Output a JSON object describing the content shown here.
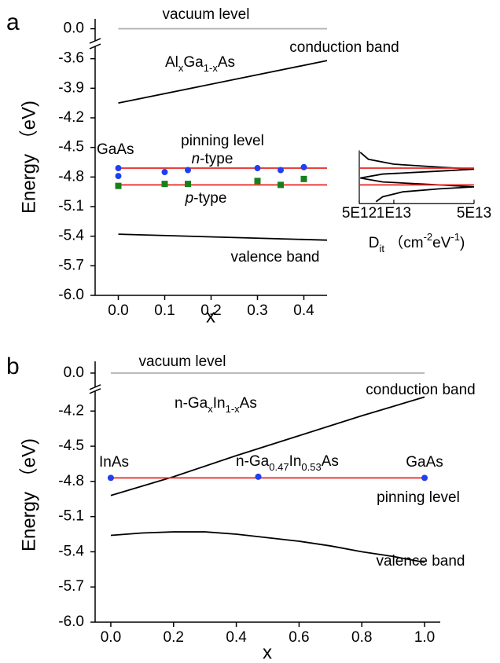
{
  "chart_data": [
    {
      "type": "line",
      "label": "a",
      "xlabel": "x",
      "ylabel": "Energy （eV)",
      "xlim": [
        -0.05,
        0.45
      ],
      "xticks": [
        {
          "value": 0,
          "label": "0.0"
        },
        0.1,
        0.2,
        0.3,
        0.4
      ],
      "ylim": [
        -6,
        0.1
      ],
      "ybreak": [
        -3.5,
        -0.1
      ],
      "yticks": [
        {
          "value": 0,
          "label": "0.0"
        },
        -3.6,
        -3.9,
        -4.2,
        -4.5,
        -4.8,
        -5.1,
        -5.4,
        -5.7,
        {
          "value": -6,
          "label": "-6.0"
        }
      ],
      "series": [
        {
          "name": "vacuum level",
          "mark": "line",
          "color": "#b4b4b4",
          "x": [
            0,
            0.45
          ],
          "values": [
            0,
            0
          ]
        },
        {
          "name": "conduction band",
          "mark": "line",
          "color": "#000000",
          "x": [
            0,
            0.45
          ],
          "values": [
            -4.05,
            -3.62
          ]
        },
        {
          "name": "valence band",
          "mark": "line",
          "color": "#000000",
          "x": [
            0,
            0.45
          ],
          "values": [
            -5.38,
            -5.44
          ]
        },
        {
          "mark": "line",
          "color": "#e8251f",
          "x": [
            0,
            0.45
          ],
          "values": [
            -4.71,
            -4.71
          ]
        },
        {
          "mark": "line",
          "color": "#e8251f",
          "x": [
            0,
            0.45
          ],
          "values": [
            -4.88,
            -4.88
          ]
        },
        {
          "mark": "circle",
          "color": "#1f3ff0",
          "x": [
            0,
            0,
            0.1,
            0.15,
            0.3,
            0.35,
            0.4
          ],
          "values": [
            -4.71,
            -4.79,
            -4.75,
            -4.73,
            -4.71,
            -4.73,
            -4.7
          ]
        },
        {
          "mark": "square",
          "color": "#17801a",
          "x": [
            0,
            0.1,
            0.15,
            0.3,
            0.35,
            0.4
          ],
          "values": [
            -4.89,
            -4.87,
            -4.87,
            -4.84,
            -4.88,
            -4.82
          ]
        }
      ],
      "annotations": {
        "material": [
          "Al",
          "x",
          "Ga",
          "1-x",
          "As"
        ],
        "reference": "GaAs",
        "pinning": "pinning level",
        "n_type": [
          "n",
          "-type"
        ],
        "p_type": [
          "p",
          "-type"
        ]
      },
      "inset": {
        "xlabel": [
          "D",
          "it",
          " （cm",
          "-2",
          "eV",
          "-1",
          ")"
        ],
        "xscale": "log",
        "xlim": [
          5000000000000.0,
          50000000000000.0
        ],
        "xticks": [
          {
            "value": 5000000000000.0,
            "label": "5E12"
          },
          {
            "value": 10000000000000.0,
            "label": "1E13"
          },
          {
            "value": 50000000000000.0,
            "label": "5E13"
          }
        ],
        "ylim": [
          -5.07,
          -4.53
        ],
        "series": [
          {
            "mark": "line",
            "color": "#000000",
            "x": [
              5100000000000.0,
              6000000000000.0,
              10000000000000.0,
              25000000000000.0,
              50000000000000.0,
              25000000000000.0,
              8000000000000.0,
              5100000000000.0,
              8000000000000.0,
              25000000000000.0,
              50000000000000.0,
              25000000000000.0,
              12000000000000.0,
              8000000000000.0,
              7000000000000.0
            ],
            "values": [
              -4.55,
              -4.62,
              -4.67,
              -4.7,
              -4.72,
              -4.74,
              -4.77,
              -4.81,
              -4.85,
              -4.88,
              -4.9,
              -4.92,
              -4.95,
              -5.0,
              -5.05
            ]
          },
          {
            "mark": "line",
            "color": "#e8251f",
            "x": [
              5000000000000.0,
              50000000000000.0
            ],
            "values": [
              -4.71,
              -4.71
            ]
          },
          {
            "mark": "line",
            "color": "#e8251f",
            "x": [
              5000000000000.0,
              50000000000000.0
            ],
            "values": [
              -4.88,
              -4.88
            ]
          }
        ]
      }
    },
    {
      "type": "line",
      "label": "b",
      "xlabel": "x",
      "ylabel": "Energy （eV)",
      "xlim": [
        -0.05,
        1.05
      ],
      "xticks": [
        {
          "value": 0,
          "label": "0.0"
        },
        0.2,
        0.4,
        0.6,
        0.8,
        {
          "value": 1,
          "label": "1.0"
        }
      ],
      "ylim": [
        -6,
        0.1
      ],
      "ybreak": [
        -4.05,
        -0.1
      ],
      "yticks": [
        {
          "value": 0,
          "label": "0.0"
        },
        -4.2,
        -4.5,
        -4.8,
        -5.1,
        -5.4,
        -5.7,
        {
          "value": -6,
          "label": "-6.0"
        }
      ],
      "series": [
        {
          "name": "vacuum level",
          "mark": "line",
          "color": "#b4b4b4",
          "x": [
            0,
            1
          ],
          "values": [
            0,
            0
          ]
        },
        {
          "name": "conduction band",
          "mark": "line",
          "color": "#000000",
          "x": [
            0,
            0.2,
            0.4,
            0.6,
            0.8,
            1
          ],
          "values": [
            -4.92,
            -4.76,
            -4.58,
            -4.41,
            -4.24,
            -4.08
          ]
        },
        {
          "name": "valence band",
          "mark": "line",
          "color": "#000000",
          "x": [
            0,
            0.1,
            0.2,
            0.3,
            0.4,
            0.5,
            0.6,
            0.7,
            0.8,
            0.9,
            1
          ],
          "values": [
            -5.26,
            -5.24,
            -5.23,
            -5.23,
            -5.25,
            -5.28,
            -5.31,
            -5.35,
            -5.4,
            -5.44,
            -5.49
          ]
        },
        {
          "mark": "line",
          "color": "#e8251f",
          "x": [
            0,
            1
          ],
          "values": [
            -4.77,
            -4.77
          ]
        },
        {
          "mark": "circle",
          "color": "#1f3ff0",
          "x": [
            0,
            0.47,
            1
          ],
          "values": [
            -4.77,
            -4.76,
            -4.77
          ]
        }
      ],
      "annotations": {
        "material": [
          "n-Ga",
          "x",
          "In",
          "1-x",
          "As"
        ],
        "left": "InAs",
        "middle": [
          "n-Ga",
          "0.47",
          "In",
          "0.53",
          "As"
        ],
        "right": "GaAs",
        "pinning": "pinning level"
      }
    }
  ]
}
